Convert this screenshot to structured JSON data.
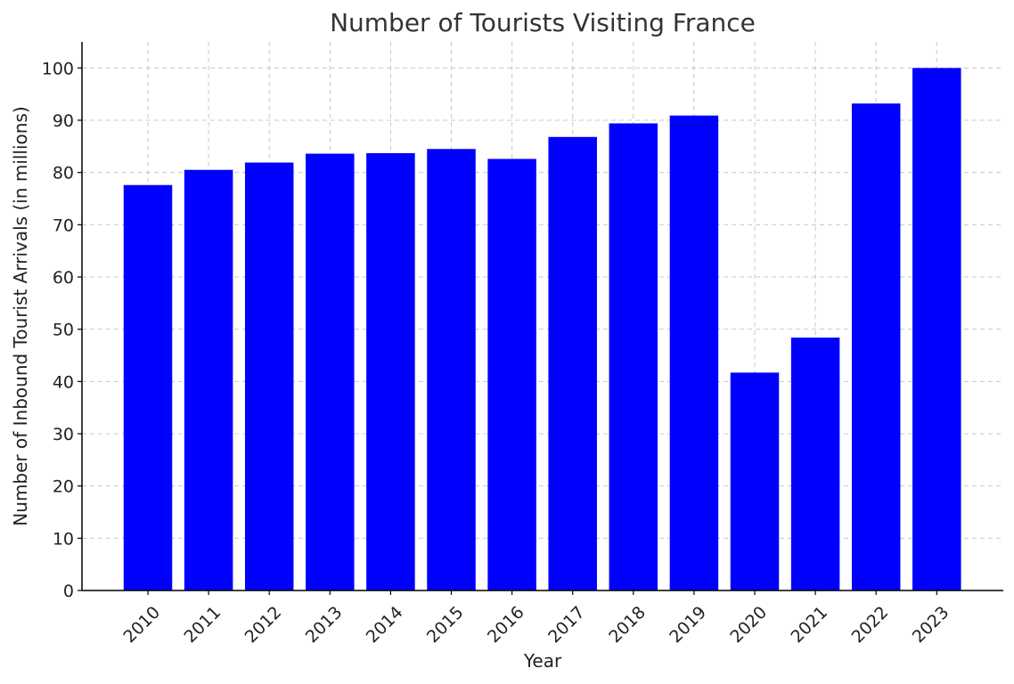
{
  "chart_data": {
    "type": "bar",
    "title": "Number of Tourists Visiting France",
    "xlabel": "Year",
    "ylabel": "Number of Inbound Tourist Arrivals (in millions)",
    "categories": [
      "2010",
      "2011",
      "2012",
      "2013",
      "2014",
      "2015",
      "2016",
      "2017",
      "2018",
      "2019",
      "2020",
      "2021",
      "2022",
      "2023"
    ],
    "values": [
      77.6,
      80.5,
      81.9,
      83.6,
      83.7,
      84.5,
      82.6,
      86.8,
      89.4,
      90.9,
      41.7,
      48.4,
      93.2,
      100
    ],
    "ylim": [
      0,
      105
    ],
    "yticks": [
      0,
      10,
      20,
      30,
      40,
      50,
      60,
      70,
      80,
      90,
      100
    ],
    "grid": true,
    "bar_color": "#0000ff"
  }
}
